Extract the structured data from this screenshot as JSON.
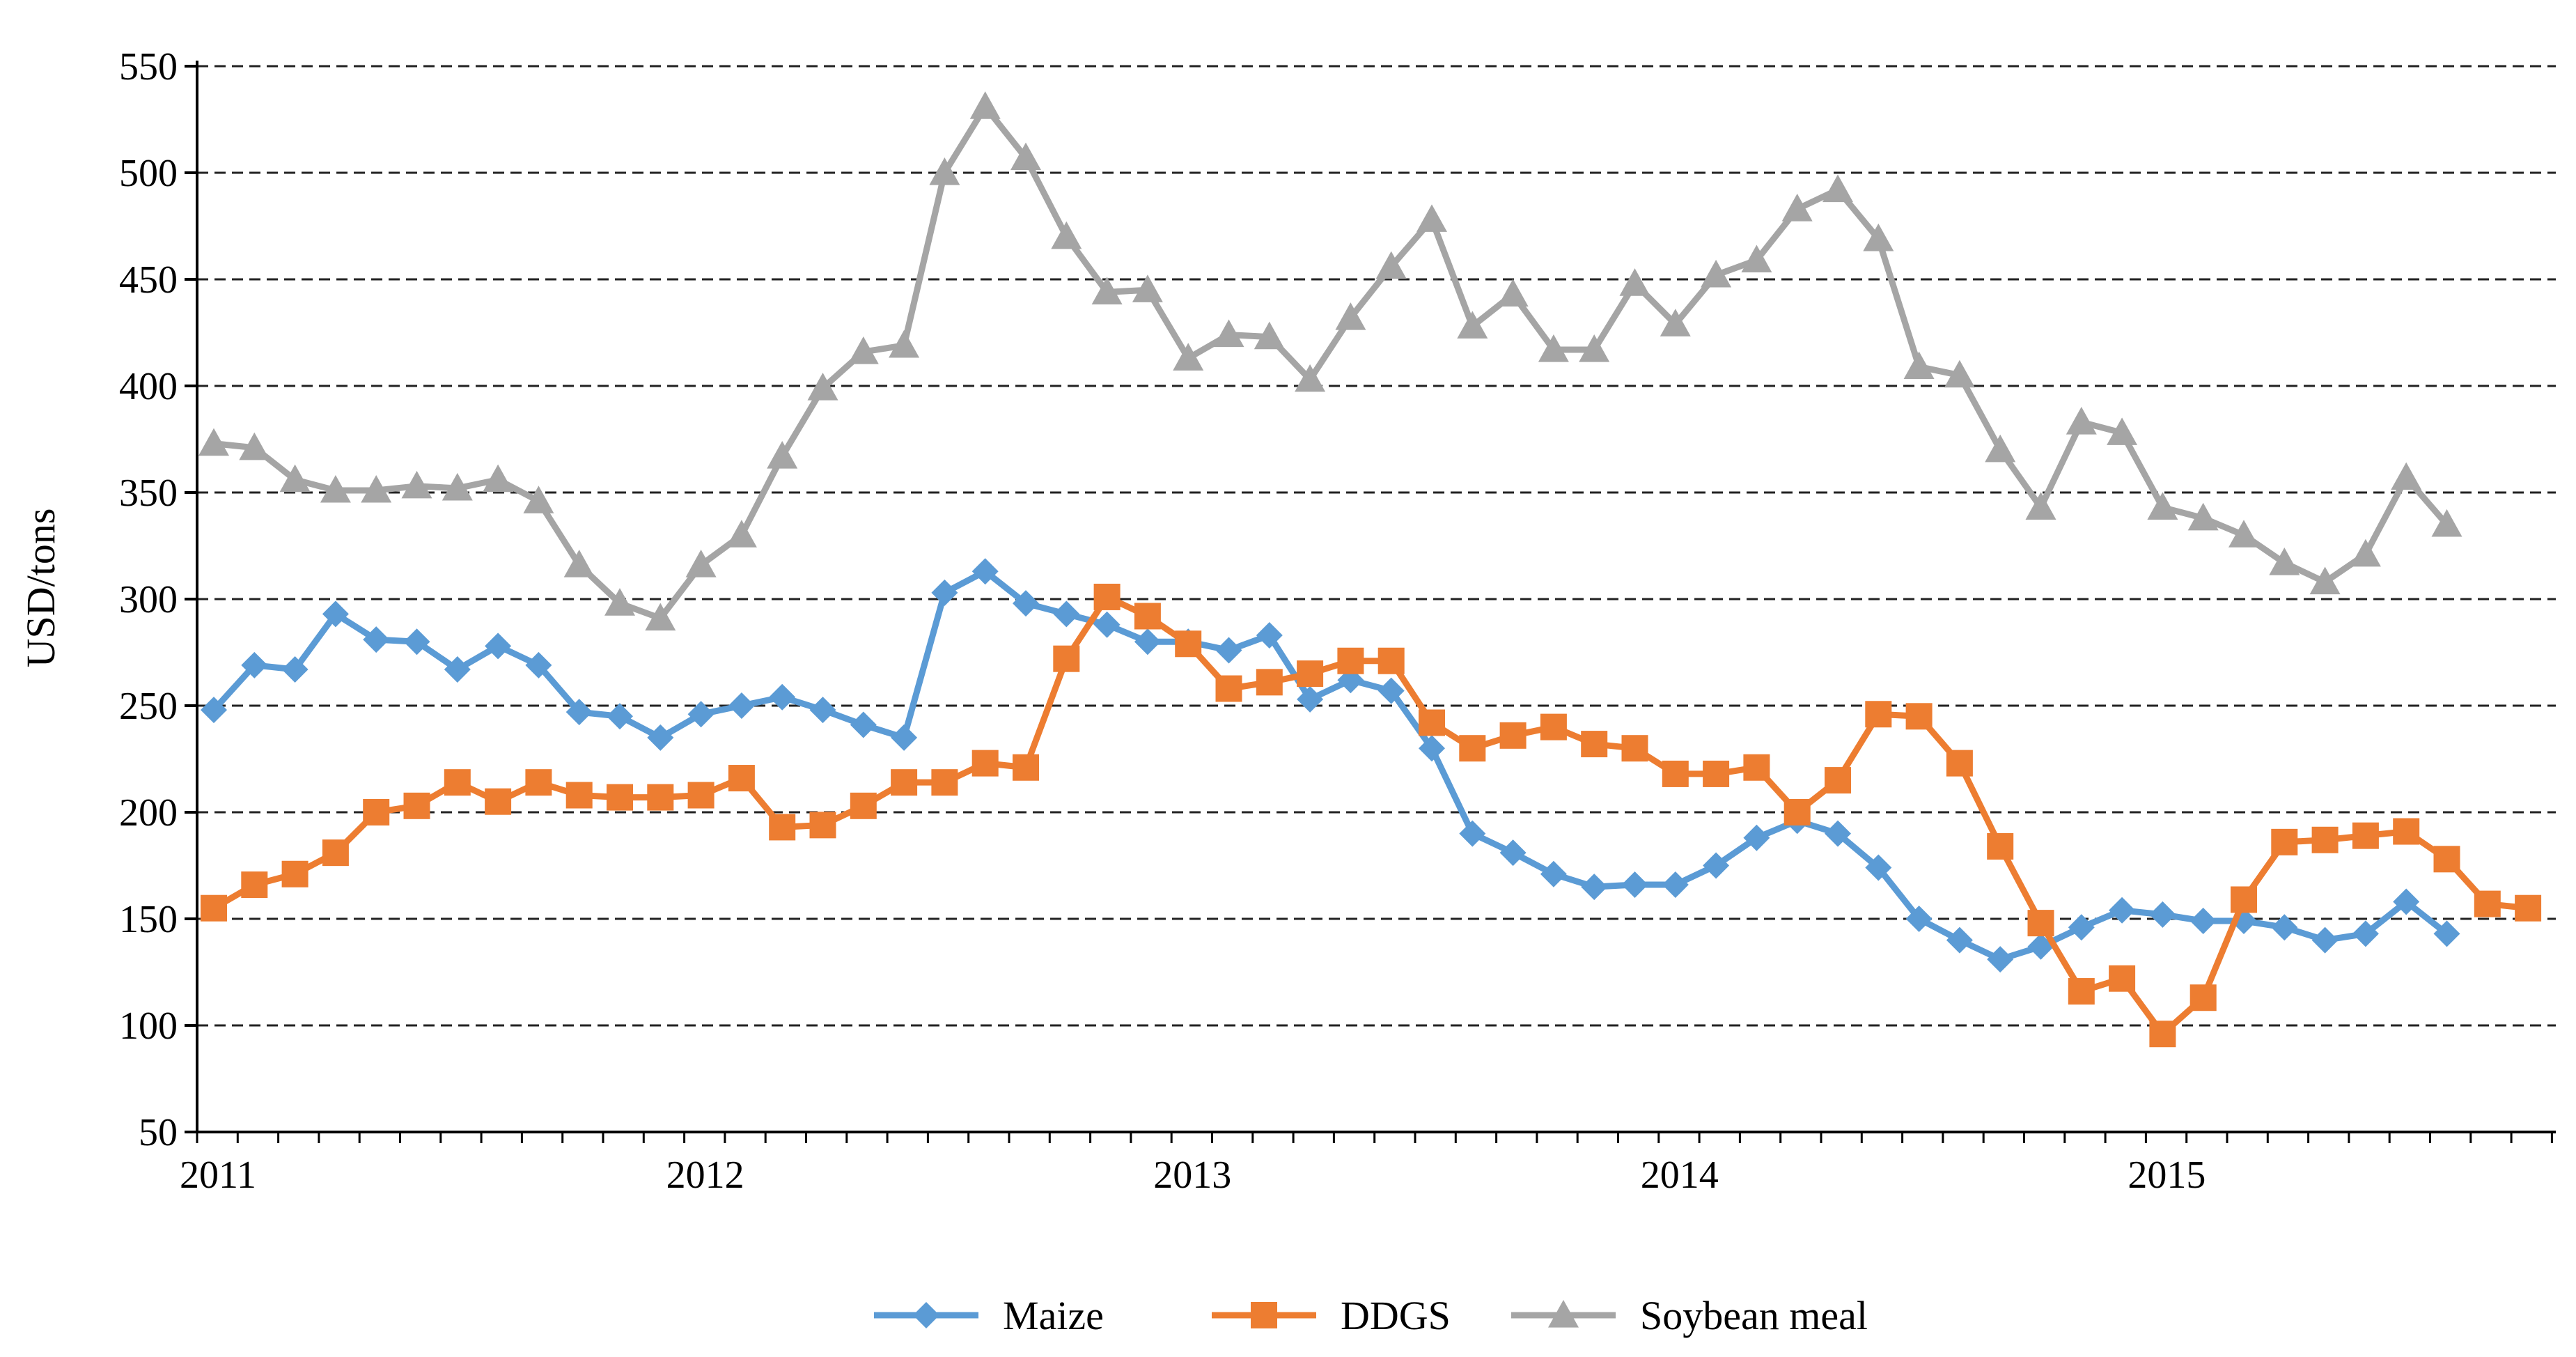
{
  "chart_data": {
    "type": "line",
    "title": "",
    "xlabel": "",
    "ylabel": "USD/tons",
    "ylim": [
      50,
      550
    ],
    "yticks": [
      50,
      100,
      150,
      200,
      250,
      300,
      350,
      400,
      450,
      500,
      550
    ],
    "xticks": [
      "2011",
      "2012",
      "2013",
      "2014",
      "2015"
    ],
    "grid": true,
    "legend_position": "bottom",
    "x_note": "monthly observations starting January 2011",
    "series": [
      {
        "name": "Maize",
        "color": "#5b9bd5",
        "marker": "diamond",
        "values": [
          248,
          269,
          267,
          293,
          281,
          280,
          267,
          278,
          269,
          247,
          245,
          235,
          246,
          250,
          254,
          248,
          241,
          235,
          303,
          313,
          298,
          293,
          288,
          280,
          280,
          276,
          283,
          253,
          262,
          257,
          230,
          190,
          181,
          171,
          165,
          166,
          166,
          175,
          188,
          196,
          190,
          174,
          150,
          140,
          131,
          137,
          146,
          154,
          152,
          149,
          149,
          146,
          140,
          143,
          158,
          143
        ]
      },
      {
        "name": "DDGS",
        "color": "#ed7d31",
        "marker": "square",
        "values": [
          155,
          166,
          171,
          181,
          200,
          203,
          214,
          205,
          214,
          208,
          207,
          207,
          208,
          216,
          193,
          194,
          203,
          214,
          214,
          223,
          221,
          272,
          301,
          292,
          279,
          258,
          261,
          265,
          271,
          271,
          242,
          230,
          236,
          240,
          232,
          230,
          218,
          218,
          221,
          200,
          215,
          246,
          245,
          223,
          184,
          148,
          116,
          122,
          96,
          113,
          159,
          186,
          187,
          189,
          191,
          178,
          157,
          155
        ]
      },
      {
        "name": "Soybean meal",
        "color": "#a5a5a5",
        "marker": "triangle",
        "values": [
          373,
          371,
          356,
          351,
          351,
          353,
          352,
          356,
          346,
          316,
          298,
          291,
          316,
          330,
          367,
          399,
          416,
          419,
          500,
          531,
          507,
          470,
          444,
          445,
          413,
          424,
          423,
          403,
          432,
          456,
          478,
          428,
          443,
          417,
          417,
          448,
          429,
          452,
          459,
          483,
          492,
          469,
          409,
          405,
          370,
          343,
          383,
          378,
          343,
          338,
          330,
          317,
          308,
          321,
          357,
          335
        ]
      }
    ]
  }
}
